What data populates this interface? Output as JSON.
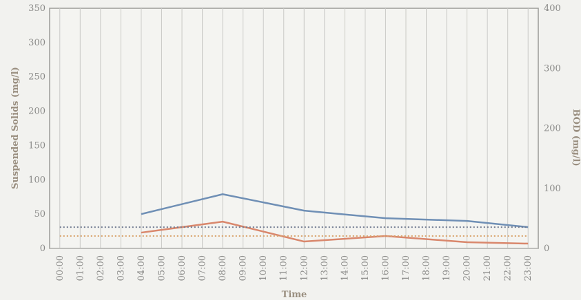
{
  "chart_data": {
    "type": "line",
    "xlabel": "Time",
    "ylabel_left": "Suspended Solids (mg/l)",
    "ylabel_right": "BOD (mg/l)",
    "categories": [
      "00:00",
      "01:00",
      "02:00",
      "03:00",
      "04:00",
      "05:00",
      "06:00",
      "07:00",
      "08:00",
      "09:00",
      "10:00",
      "11:00",
      "12:00",
      "13:00",
      "14:00",
      "15:00",
      "16:00",
      "17:00",
      "18:00",
      "19:00",
      "20:00",
      "21:00",
      "22:00",
      "23:00"
    ],
    "ylim_left": [
      0,
      350
    ],
    "ylim_right": [
      0,
      400
    ],
    "yticks_left": [
      0,
      50,
      100,
      150,
      200,
      250,
      300,
      350
    ],
    "yticks_right_values": [
      0,
      100,
      200,
      300,
      400
    ],
    "yticks_right_labels": [
      "0",
      "100",
      "200",
      "300",
      "400"
    ],
    "grid": "vertical",
    "series": [
      {
        "color": "#6f8fb5",
        "axis": "left",
        "style": "solid",
        "x": [
          "04:00",
          "08:00",
          "12:00",
          "16:00",
          "20:00",
          "23:00"
        ],
        "values": [
          50,
          79,
          55,
          44,
          40,
          31
        ]
      },
      {
        "color": "#d9876c",
        "axis": "left",
        "style": "solid",
        "x": [
          "04:00",
          "08:00",
          "12:00",
          "16:00",
          "20:00",
          "23:00"
        ],
        "values": [
          23,
          39,
          10,
          18,
          9,
          7
        ]
      },
      {
        "color": "#707a90",
        "axis": "left",
        "style": "dotted",
        "x": [
          "00:00",
          "23:00"
        ],
        "values": [
          31,
          31
        ]
      },
      {
        "color": "#d9a36c",
        "axis": "left",
        "style": "dotted",
        "x": [
          "00:00",
          "23:00"
        ],
        "values": [
          18,
          18
        ]
      }
    ]
  }
}
